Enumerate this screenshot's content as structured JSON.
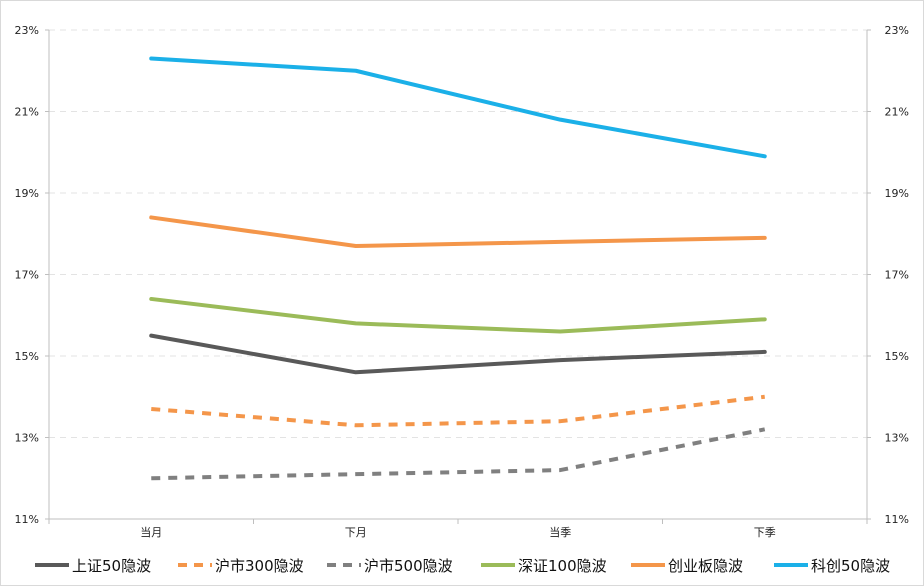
{
  "chart_data": {
    "type": "line",
    "title": "",
    "xlabel": "",
    "ylabel": "",
    "categories": [
      "当月",
      "下月",
      "当季",
      "下季"
    ],
    "ylim": [
      0.11,
      0.23
    ],
    "yticks": [
      "11%",
      "13%",
      "15%",
      "17%",
      "19%",
      "21%",
      "23%"
    ],
    "ytick_values": [
      0.11,
      0.13,
      0.15,
      0.17,
      0.19,
      0.21,
      0.23
    ],
    "grid": true,
    "grid_style": "dashed",
    "secondary_axis_mirrored": true,
    "legend_position": "bottom",
    "series": [
      {
        "name": "上证50隐波",
        "values": [
          0.155,
          0.146,
          0.149,
          0.151
        ],
        "color": "#595959",
        "dash": "solid"
      },
      {
        "name": "沪市300隐波",
        "values": [
          0.137,
          0.133,
          0.134,
          0.14
        ],
        "color": "#F4964A",
        "dash": "dashed"
      },
      {
        "name": "沪市500隐波",
        "values": [
          0.12,
          0.121,
          0.122,
          0.132
        ],
        "color": "#808080",
        "dash": "dashed"
      },
      {
        "name": "深证100隐波",
        "values": [
          0.164,
          0.158,
          0.156,
          0.159
        ],
        "color": "#9BBB59",
        "dash": "solid"
      },
      {
        "name": "创业板隐波",
        "values": [
          0.184,
          0.177,
          0.178,
          0.179
        ],
        "color": "#F4964A",
        "dash": "solid"
      },
      {
        "name": "科创50隐波",
        "values": [
          0.223,
          0.22,
          0.208,
          0.199
        ],
        "color": "#1BB0E8",
        "dash": "solid"
      }
    ]
  }
}
